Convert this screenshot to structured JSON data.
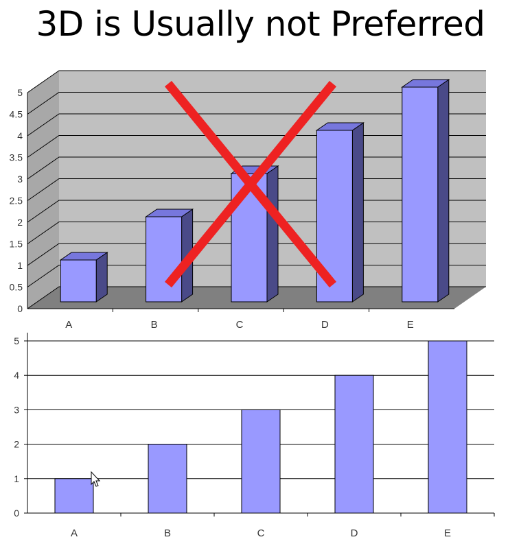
{
  "slide": {
    "title": "3D is Usually not Preferred"
  },
  "colors": {
    "bar_front": "#9999ff",
    "bar_top": "#7777dd",
    "bar_side": "#4a4a88",
    "wall": "#c0c0c0",
    "floor": "#808080",
    "cross": "#ee2222"
  },
  "chart_data": [
    {
      "type": "bar",
      "style": "3d",
      "categories": [
        "A",
        "B",
        "C",
        "D",
        "E"
      ],
      "values": [
        1,
        2,
        3,
        4,
        5
      ],
      "yticks": [
        "0",
        "0.5",
        "1",
        "1.5",
        "2",
        "2.5",
        "3",
        "3.5",
        "4",
        "4.5",
        "5"
      ],
      "ylim": [
        0,
        5
      ],
      "grid": true,
      "annotation": "red-cross-out"
    },
    {
      "type": "bar",
      "style": "2d",
      "categories": [
        "A",
        "B",
        "C",
        "D",
        "E"
      ],
      "values": [
        1,
        2,
        3,
        4,
        5
      ],
      "yticks": [
        "0",
        "1",
        "2",
        "3",
        "4",
        "5"
      ],
      "ylim": [
        0,
        5
      ],
      "grid": true
    }
  ]
}
